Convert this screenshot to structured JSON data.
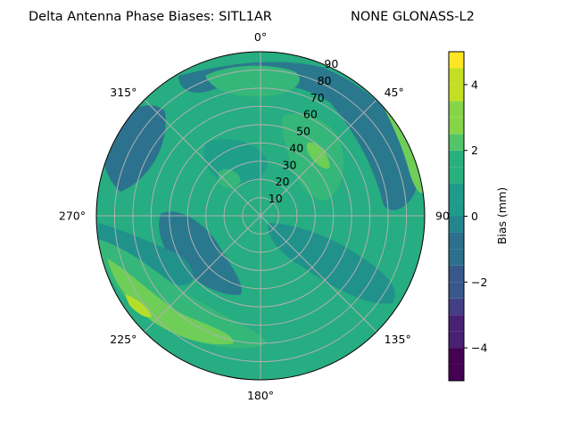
{
  "chart_data": {
    "type": "heatmap",
    "projection": "polar",
    "title": "Delta Antenna Phase Biases: SITL1AR",
    "subtitle": "NONE GLONASS-L2",
    "theta_direction": "clockwise",
    "theta_zero": "top",
    "theta_ticks": [
      "0°",
      "45°",
      "90",
      "135°",
      "180°",
      "225°",
      "270°",
      "315°"
    ],
    "r_ticks": [
      "10",
      "20",
      "30",
      "40",
      "50",
      "60",
      "70",
      "80",
      "90"
    ],
    "r_range": [
      0,
      90
    ],
    "grid": true,
    "colorbar": {
      "label": "Bias (mm)",
      "ticks": [
        "4",
        "2",
        "0",
        "−2",
        "−4"
      ],
      "range": [
        -5,
        5
      ],
      "levels": [
        -5,
        -4.5,
        -4,
        -3.5,
        -3,
        -2.5,
        -2,
        -1.5,
        -1,
        -0.5,
        0,
        0.5,
        1,
        1.5,
        2,
        2.5,
        3,
        3.5,
        4,
        4.5,
        5
      ],
      "colormap": "viridis"
    },
    "data_note": "approximate contour field read from image",
    "contour_regions": [
      {
        "azimuth_deg": 0,
        "elevation_deg": 0,
        "bias_mm": 0.5
      },
      {
        "azimuth_deg": 60,
        "elevation_deg": 40,
        "bias_mm": 2.5
      },
      {
        "azimuth_deg": 35,
        "elevation_deg": 45,
        "bias_mm": 3.2
      },
      {
        "azimuth_deg": 45,
        "elevation_deg": 75,
        "bias_mm": -1.3
      },
      {
        "azimuth_deg": 80,
        "elevation_deg": 88,
        "bias_mm": 2.7
      },
      {
        "azimuth_deg": 300,
        "elevation_deg": 70,
        "bias_mm": -1.3
      },
      {
        "azimuth_deg": 240,
        "elevation_deg": 70,
        "bias_mm": 2.2
      },
      {
        "azimuth_deg": 228,
        "elevation_deg": 78,
        "bias_mm": 3.3
      },
      {
        "azimuth_deg": 260,
        "elevation_deg": 40,
        "bias_mm": -0.8
      },
      {
        "azimuth_deg": 130,
        "elevation_deg": 75,
        "bias_mm": -0.6
      },
      {
        "azimuth_deg": 315,
        "elevation_deg": 25,
        "bias_mm": 1.8
      }
    ]
  }
}
